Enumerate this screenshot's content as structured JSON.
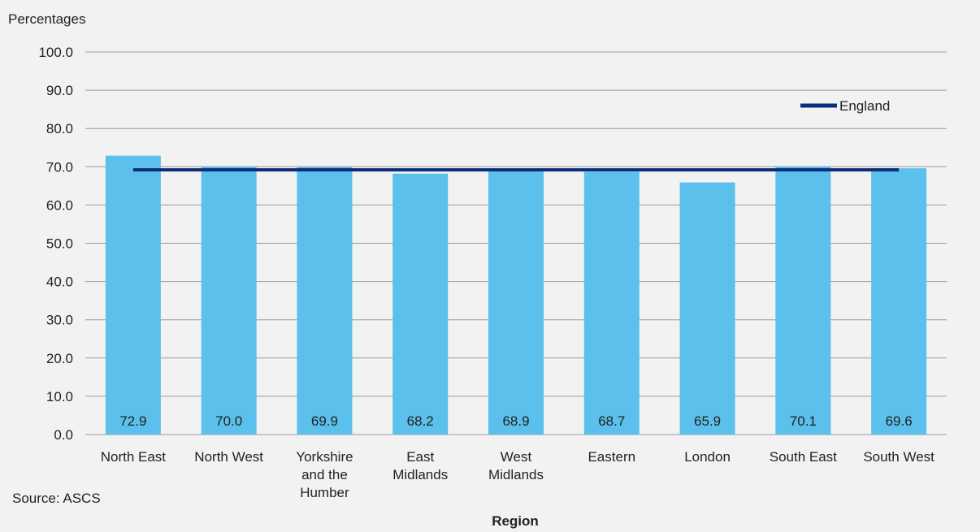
{
  "chart_data": {
    "type": "bar",
    "ylabel": "Percentages",
    "xlabel": "Region",
    "source": "Source: ASCS",
    "categories": [
      [
        "North East"
      ],
      [
        "North West"
      ],
      [
        "Yorkshire",
        "and the",
        "Humber"
      ],
      [
        "East",
        "Midlands"
      ],
      [
        "West",
        "Midlands"
      ],
      [
        "Eastern"
      ],
      [
        "London"
      ],
      [
        "South East"
      ],
      [
        "South West"
      ]
    ],
    "values": [
      72.9,
      70.0,
      69.9,
      68.2,
      68.9,
      68.7,
      65.9,
      70.1,
      69.6
    ],
    "value_labels": [
      "72.9",
      "70.0",
      "69.9",
      "68.2",
      "68.9",
      "68.7",
      "65.9",
      "70.1",
      "69.6"
    ],
    "bar_color": "#5bc0eb",
    "reference_line": {
      "name": "England",
      "value": 69.2,
      "color": "#0d2d7a"
    },
    "ylim": [
      0,
      100
    ],
    "y_ticks": [
      "0.0",
      "10.0",
      "20.0",
      "30.0",
      "40.0",
      "50.0",
      "60.0",
      "70.0",
      "80.0",
      "90.0",
      "100.0"
    ],
    "grid": true,
    "legend_position": "top-right"
  }
}
